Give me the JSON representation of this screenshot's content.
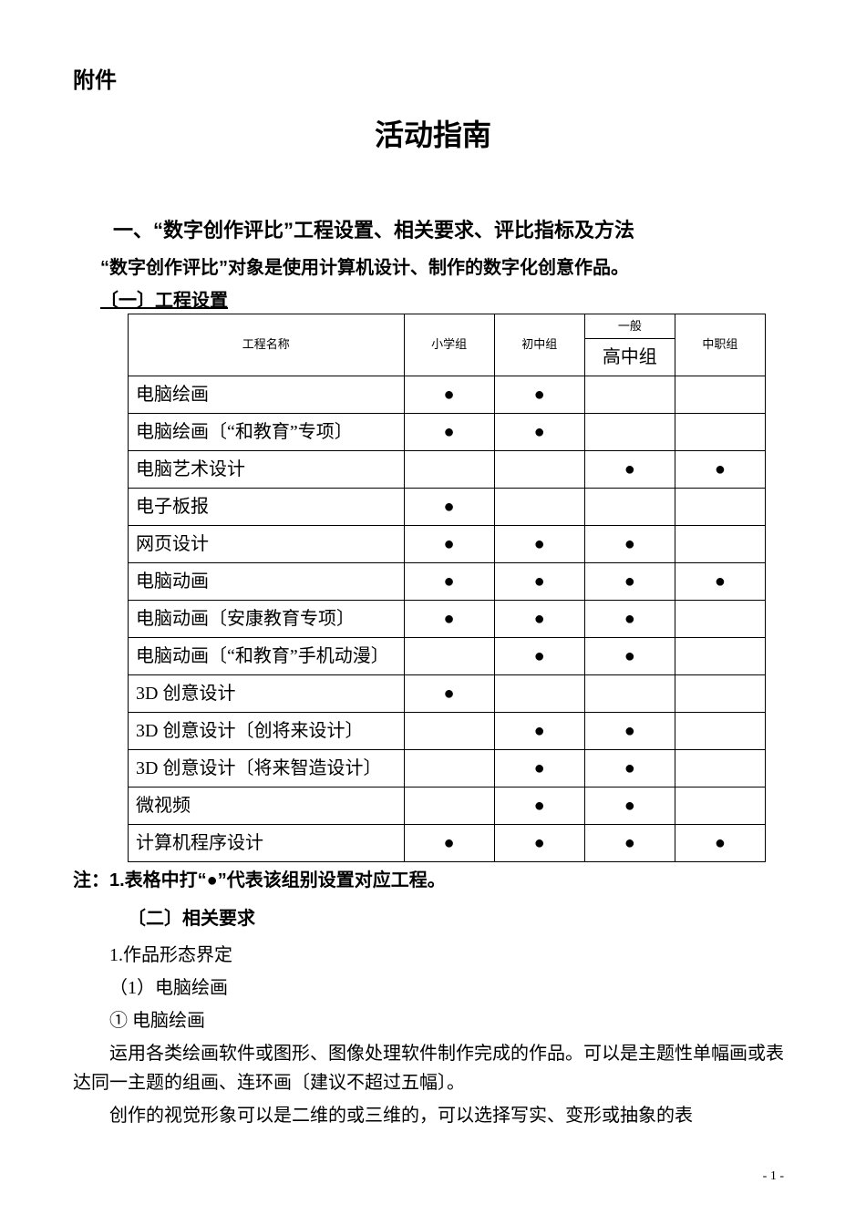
{
  "attachment_label": "附件",
  "main_title": "活动指南",
  "section1": {
    "heading": "一、“数字创作评比”工程设置、相关要求、评比指标及方法",
    "intro": "“数字创作评比”对象是使用计算机设计、制作的数字化创意作品。",
    "subsection1": "〔一〕工程设置"
  },
  "table": {
    "headers": {
      "project_name": "工程名称",
      "primary": "小学组",
      "junior": "初中组",
      "general": "一般",
      "senior": "高中组",
      "vocational": "中职组"
    },
    "rows": [
      {
        "name": "电脑绘画",
        "dots": [
          true,
          true,
          false,
          false
        ]
      },
      {
        "name": "电脑绘画〔“和教育”专项〕",
        "dots": [
          true,
          true,
          false,
          false
        ]
      },
      {
        "name": "电脑艺术设计",
        "dots": [
          false,
          false,
          true,
          true
        ]
      },
      {
        "name": "电子板报",
        "dots": [
          true,
          false,
          false,
          false
        ]
      },
      {
        "name": "网页设计",
        "dots": [
          true,
          true,
          true,
          false
        ]
      },
      {
        "name": "电脑动画",
        "dots": [
          true,
          true,
          true,
          true
        ]
      },
      {
        "name": "电脑动画〔安康教育专项〕",
        "dots": [
          true,
          true,
          true,
          false
        ]
      },
      {
        "name": "电脑动画〔“和教育”手机动漫〕",
        "dots": [
          false,
          true,
          true,
          false
        ]
      },
      {
        "name": "3D 创意设计",
        "dots": [
          true,
          false,
          false,
          false
        ]
      },
      {
        "name": "3D 创意设计〔创将来设计〕",
        "dots": [
          false,
          true,
          true,
          false
        ]
      },
      {
        "name": "3D 创意设计〔将来智造设计〕",
        "dots": [
          false,
          true,
          true,
          false
        ]
      },
      {
        "name": "微视频",
        "dots": [
          false,
          true,
          true,
          false
        ]
      },
      {
        "name": "计算机程序设计",
        "dots": [
          true,
          true,
          true,
          true
        ]
      }
    ]
  },
  "note": "注：1.表格中打“●”代表该组别设置对应工程。",
  "subsection2": "〔二〕相关要求",
  "body": {
    "line1": "1.作品形态界定",
    "line2": "（1）电脑绘画",
    "line3": "① 电脑绘画",
    "line4": "运用各类绘画软件或图形、图像处理软件制作完成的作品。可以是主题性单幅画或表达同一主题的组画、连环画〔建议不超过五幅〕。",
    "line5": "创作的视觉形象可以是二维的或三维的，可以选择写实、变形或抽象的表"
  },
  "page_number": "- 1 -",
  "dot": "●"
}
